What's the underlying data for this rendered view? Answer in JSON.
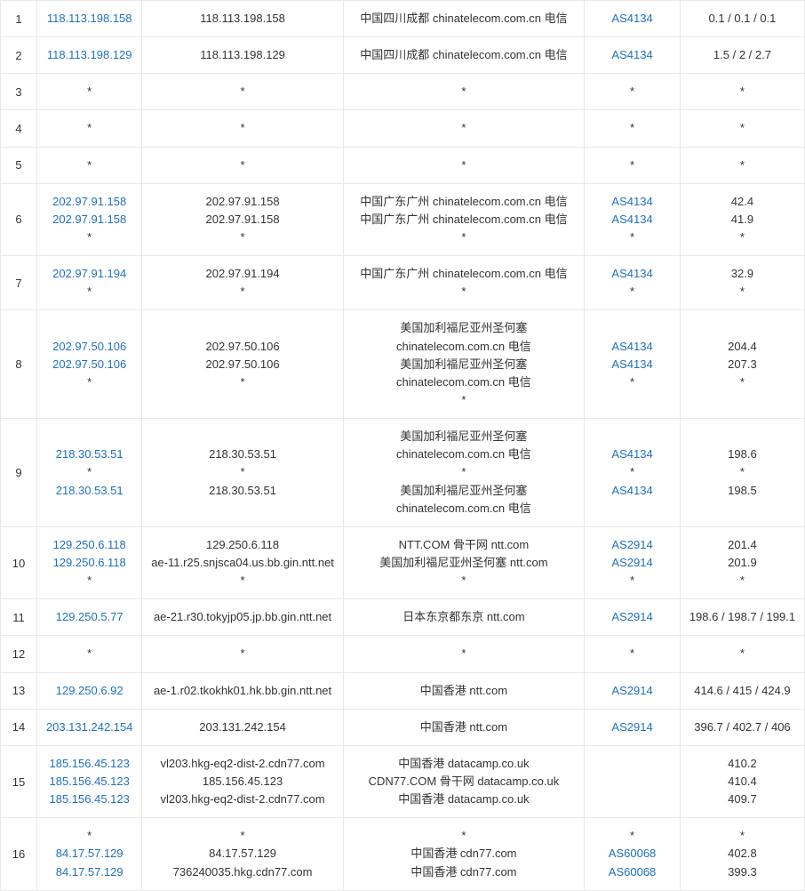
{
  "link_color": "#1e70bf",
  "text_color": "#333333",
  "border_color": "#e8e8e8",
  "rows": [
    {
      "hop": "1",
      "items": [
        {
          "ip": "118.113.198.158",
          "host": "118.113.198.158",
          "desc": "中国四川成都 chinatelecom.com.cn 电信",
          "asn": "AS4134",
          "lat": "0.1 / 0.1 / 0.1"
        }
      ]
    },
    {
      "hop": "2",
      "items": [
        {
          "ip": "118.113.198.129",
          "host": "118.113.198.129",
          "desc": "中国四川成都 chinatelecom.com.cn 电信",
          "asn": "AS4134",
          "lat": "1.5 / 2 / 2.7"
        }
      ]
    },
    {
      "hop": "3",
      "items": [
        {
          "ip": "*",
          "host": "*",
          "desc": "*",
          "asn": "*",
          "lat": "*"
        }
      ]
    },
    {
      "hop": "4",
      "items": [
        {
          "ip": "*",
          "host": "*",
          "desc": "*",
          "asn": "*",
          "lat": "*"
        }
      ]
    },
    {
      "hop": "5",
      "items": [
        {
          "ip": "*",
          "host": "*",
          "desc": "*",
          "asn": "*",
          "lat": "*"
        }
      ]
    },
    {
      "hop": "6",
      "items": [
        {
          "ip": "202.97.91.158",
          "host": "202.97.91.158",
          "desc": "中国广东广州 chinatelecom.com.cn 电信",
          "asn": "AS4134",
          "lat": "42.4"
        },
        {
          "ip": "202.97.91.158",
          "host": "202.97.91.158",
          "desc": "中国广东广州 chinatelecom.com.cn 电信",
          "asn": "AS4134",
          "lat": "41.9"
        },
        {
          "ip": "*",
          "host": "*",
          "desc": "*",
          "asn": "*",
          "lat": "*"
        }
      ]
    },
    {
      "hop": "7",
      "items": [
        {
          "ip": "202.97.91.194",
          "host": "202.97.91.194",
          "desc": "中国广东广州 chinatelecom.com.cn 电信",
          "asn": "AS4134",
          "lat": "32.9"
        },
        {
          "ip": "*",
          "host": "*",
          "desc": "*",
          "asn": "*",
          "lat": "*"
        }
      ]
    },
    {
      "hop": "8",
      "items": [
        {
          "ip": "202.97.50.106",
          "host": "202.97.50.106",
          "desc": "美国加利福尼亚州圣何塞 chinatelecom.com.cn 电信",
          "asn": "AS4134",
          "lat": "204.4"
        },
        {
          "ip": "202.97.50.106",
          "host": "202.97.50.106",
          "desc": "美国加利福尼亚州圣何塞 chinatelecom.com.cn 电信",
          "asn": "AS4134",
          "lat": "207.3"
        },
        {
          "ip": "*",
          "host": "*",
          "desc": "*",
          "asn": "*",
          "lat": "*"
        }
      ]
    },
    {
      "hop": "9",
      "items": [
        {
          "ip": "218.30.53.51",
          "host": "218.30.53.51",
          "desc": "美国加利福尼亚州圣何塞 chinatelecom.com.cn 电信",
          "asn": "AS4134",
          "lat": "198.6"
        },
        {
          "ip": "*",
          "host": "*",
          "desc": "*",
          "asn": "*",
          "lat": "*"
        },
        {
          "ip": "218.30.53.51",
          "host": "218.30.53.51",
          "desc": "美国加利福尼亚州圣何塞 chinatelecom.com.cn 电信",
          "asn": "AS4134",
          "lat": "198.5"
        }
      ]
    },
    {
      "hop": "10",
      "items": [
        {
          "ip": "129.250.6.118",
          "host": "129.250.6.118",
          "desc": "NTT.COM 骨干网 ntt.com",
          "asn": "AS2914",
          "lat": "201.4"
        },
        {
          "ip": "129.250.6.118",
          "host": "ae-11.r25.snjsca04.us.bb.gin.ntt.net",
          "desc": "美国加利福尼亚州圣何塞 ntt.com",
          "asn": "AS2914",
          "lat": "201.9"
        },
        {
          "ip": "*",
          "host": "*",
          "desc": "*",
          "asn": "*",
          "lat": "*"
        }
      ]
    },
    {
      "hop": "11",
      "items": [
        {
          "ip": "129.250.5.77",
          "host": "ae-21.r30.tokyjp05.jp.bb.gin.ntt.net",
          "desc": "日本东京都东京 ntt.com",
          "asn": "AS2914",
          "lat": "198.6 / 198.7 / 199.1"
        }
      ]
    },
    {
      "hop": "12",
      "items": [
        {
          "ip": "*",
          "host": "*",
          "desc": "*",
          "asn": "*",
          "lat": "*"
        }
      ]
    },
    {
      "hop": "13",
      "items": [
        {
          "ip": "129.250.6.92",
          "host": "ae-1.r02.tkokhk01.hk.bb.gin.ntt.net",
          "desc": "中国香港 ntt.com",
          "asn": "AS2914",
          "lat": "414.6 / 415 / 424.9"
        }
      ]
    },
    {
      "hop": "14",
      "items": [
        {
          "ip": "203.131.242.154",
          "host": "203.131.242.154",
          "desc": "中国香港 ntt.com",
          "asn": "AS2914",
          "lat": "396.7 / 402.7 / 406"
        }
      ]
    },
    {
      "hop": "15",
      "items": [
        {
          "ip": "185.156.45.123",
          "host": "vl203.hkg-eq2-dist-2.cdn77.com",
          "desc": "中国香港 datacamp.co.uk",
          "asn": "",
          "lat": "410.2"
        },
        {
          "ip": "185.156.45.123",
          "host": "185.156.45.123",
          "desc": "CDN77.COM 骨干网 datacamp.co.uk",
          "asn": "",
          "lat": "410.4"
        },
        {
          "ip": "185.156.45.123",
          "host": "vl203.hkg-eq2-dist-2.cdn77.com",
          "desc": "中国香港 datacamp.co.uk",
          "asn": "",
          "lat": "409.7"
        }
      ]
    },
    {
      "hop": "16",
      "items": [
        {
          "ip": "*",
          "host": "*",
          "desc": "*",
          "asn": "*",
          "lat": "*"
        },
        {
          "ip": "84.17.57.129",
          "host": "84.17.57.129",
          "desc": "中国香港 cdn77.com",
          "asn": "AS60068",
          "lat": "402.8"
        },
        {
          "ip": "84.17.57.129",
          "host": "736240035.hkg.cdn77.com",
          "desc": "中国香港 cdn77.com",
          "asn": "AS60068",
          "lat": "399.3"
        }
      ]
    }
  ]
}
